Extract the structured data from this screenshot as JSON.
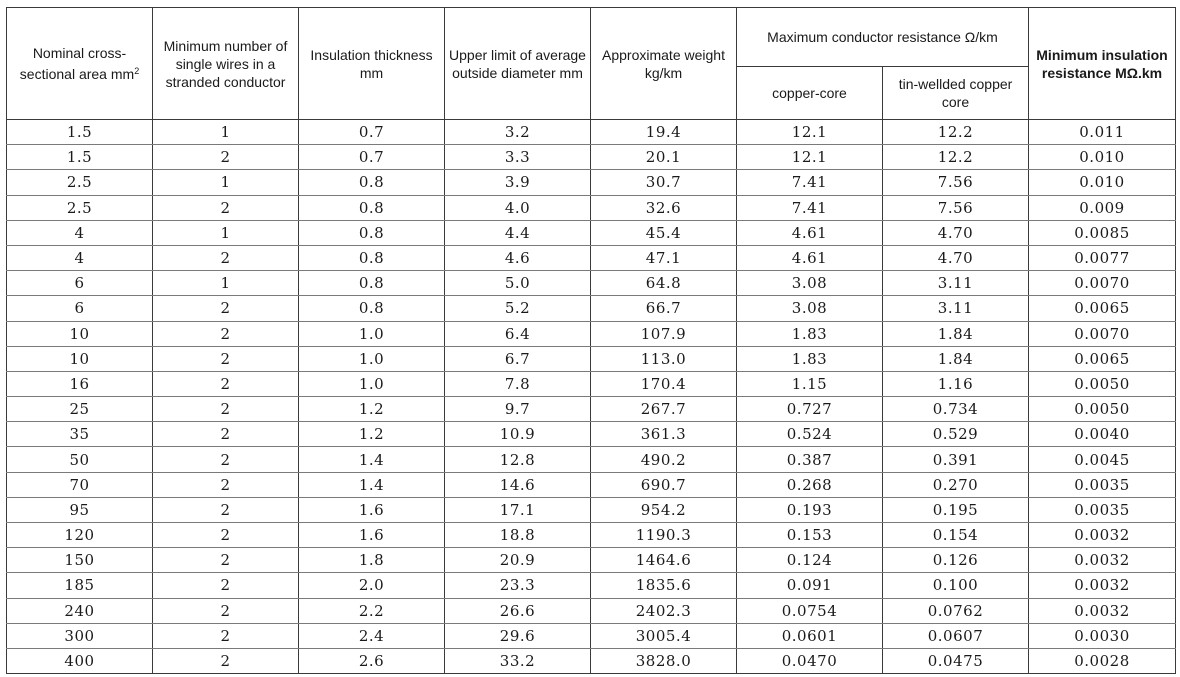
{
  "headers": {
    "nominal_area": "Nominal cross-sectional area mm",
    "nominal_area_sup": "2",
    "min_wires": "Minimum number of single wires in a stranded conductor",
    "insulation_thickness": "Insulation thickness mm",
    "upper_limit_diameter": "Upper limit of average outside diameter mm",
    "approx_weight": "Approximate weight kg/km",
    "max_resistance": "Maximum conductor resistance Ω/km",
    "copper_core": "copper-core",
    "tin_copper_core": "tin-wellded copper core",
    "min_insulation_resistance": "Minimum insulation resistance MΩ.km"
  },
  "rows": [
    [
      "1.5",
      "1",
      "0.7",
      "3.2",
      "19.4",
      "12.1",
      "12.2",
      "0.011"
    ],
    [
      "1.5",
      "2",
      "0.7",
      "3.3",
      "20.1",
      "12.1",
      "12.2",
      "0.010"
    ],
    [
      "2.5",
      "1",
      "0.8",
      "3.9",
      "30.7",
      "7.41",
      "7.56",
      "0.010"
    ],
    [
      "2.5",
      "2",
      "0.8",
      "4.0",
      "32.6",
      "7.41",
      "7.56",
      "0.009"
    ],
    [
      "4",
      "1",
      "0.8",
      "4.4",
      "45.4",
      "4.61",
      "4.70",
      "0.0085"
    ],
    [
      "4",
      "2",
      "0.8",
      "4.6",
      "47.1",
      "4.61",
      "4.70",
      "0.0077"
    ],
    [
      "6",
      "1",
      "0.8",
      "5.0",
      "64.8",
      "3.08",
      "3.11",
      "0.0070"
    ],
    [
      "6",
      "2",
      "0.8",
      "5.2",
      "66.7",
      "3.08",
      "3.11",
      "0.0065"
    ],
    [
      "10",
      "2",
      "1.0",
      "6.4",
      "107.9",
      "1.83",
      "1.84",
      "0.0070"
    ],
    [
      "10",
      "2",
      "1.0",
      "6.7",
      "113.0",
      "1.83",
      "1.84",
      "0.0065"
    ],
    [
      "16",
      "2",
      "1.0",
      "7.8",
      "170.4",
      "1.15",
      "1.16",
      "0.0050"
    ],
    [
      "25",
      "2",
      "1.2",
      "9.7",
      "267.7",
      "0.727",
      "0.734",
      "0.0050"
    ],
    [
      "35",
      "2",
      "1.2",
      "10.9",
      "361.3",
      "0.524",
      "0.529",
      "0.0040"
    ],
    [
      "50",
      "2",
      "1.4",
      "12.8",
      "490.2",
      "0.387",
      "0.391",
      "0.0045"
    ],
    [
      "70",
      "2",
      "1.4",
      "14.6",
      "690.7",
      "0.268",
      "0.270",
      "0.0035"
    ],
    [
      "95",
      "2",
      "1.6",
      "17.1",
      "954.2",
      "0.193",
      "0.195",
      "0.0035"
    ],
    [
      "120",
      "2",
      "1.6",
      "18.8",
      "1190.3",
      "0.153",
      "0.154",
      "0.0032"
    ],
    [
      "150",
      "2",
      "1.8",
      "20.9",
      "1464.6",
      "0.124",
      "0.126",
      "0.0032"
    ],
    [
      "185",
      "2",
      "2.0",
      "23.3",
      "1835.6",
      "0.091",
      "0.100",
      "0.0032"
    ],
    [
      "240",
      "2",
      "2.2",
      "26.6",
      "2402.3",
      "0.0754",
      "0.0762",
      "0.0032"
    ],
    [
      "300",
      "2",
      "2.4",
      "29.6",
      "3005.4",
      "0.0601",
      "0.0607",
      "0.0030"
    ],
    [
      "400",
      "2",
      "2.6",
      "33.2",
      "3828.0",
      "0.0470",
      "0.0475",
      "0.0028"
    ]
  ]
}
